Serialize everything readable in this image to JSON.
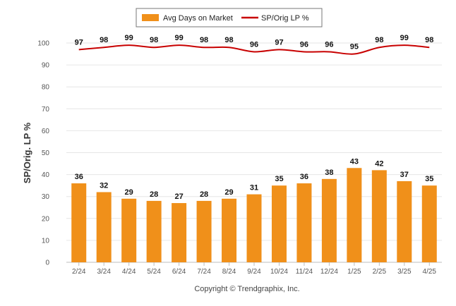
{
  "chart_data": {
    "type": "bar",
    "categories": [
      "2/24",
      "3/24",
      "4/24",
      "5/24",
      "6/24",
      "7/24",
      "8/24",
      "9/24",
      "10/24",
      "11/24",
      "12/24",
      "1/25",
      "2/25",
      "3/25",
      "4/25"
    ],
    "series": [
      {
        "name": "Avg Days on Market",
        "type": "bar",
        "color": "#f0901a",
        "values": [
          36,
          32,
          29,
          28,
          27,
          28,
          29,
          31,
          35,
          36,
          38,
          43,
          42,
          37,
          35
        ]
      },
      {
        "name": "SP/Orig LP %",
        "type": "line",
        "color": "#c80000",
        "values": [
          97,
          98,
          99,
          98,
          99,
          98,
          98,
          96,
          97,
          96,
          96,
          95,
          98,
          99,
          98
        ]
      }
    ],
    "ylabel": "SP/Orig. LP %",
    "xlabel": "",
    "ylim": [
      0,
      100
    ],
    "yticks": [
      0,
      10,
      20,
      30,
      40,
      50,
      60,
      70,
      80,
      90,
      100
    ],
    "grid": true,
    "legend": "top-center"
  },
  "footer": {
    "copyright": "Copyright © Trendgraphix, Inc."
  }
}
